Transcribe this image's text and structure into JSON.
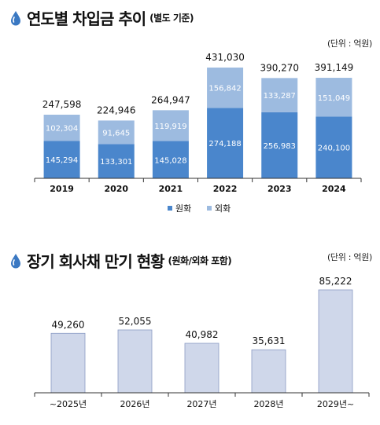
{
  "colors": {
    "domestic": "#4a86cc",
    "foreign": "#9dbbe0",
    "maturity": "#cfd7ea",
    "icon": "#3a78c2",
    "axis": "#333333"
  },
  "section1": {
    "title": "연도별 차입금 추이",
    "subtitle": "(별도 기준)",
    "unit": "(단위 : 억원)",
    "legend": [
      "원화",
      "외화"
    ]
  },
  "section2": {
    "title": "장기 회사채 만기 현황",
    "subtitle": "(원화/외화 포함)",
    "unit": "(단위 : 억원)"
  },
  "chart_data": [
    {
      "type": "bar",
      "stacked": true,
      "categories": [
        "2019",
        "2020",
        "2021",
        "2022",
        "2023",
        "2024"
      ],
      "series": [
        {
          "name": "원화",
          "values": [
            145294,
            133301,
            145028,
            274188,
            256983,
            240100
          ]
        },
        {
          "name": "외화",
          "values": [
            102304,
            91645,
            119919,
            156842,
            133287,
            151049
          ]
        }
      ],
      "totals": [
        "247,598",
        "224,946",
        "264,947",
        "431,030",
        "390,270",
        "391,149"
      ],
      "labels": {
        "domestic": [
          "145,294",
          "133,301",
          "145,028",
          "274,188",
          "256,983",
          "240,100"
        ],
        "foreign": [
          "102,304",
          "91,645",
          "119,919",
          "156,842",
          "133,287",
          "151,049"
        ]
      },
      "ylim": [
        0,
        431030
      ],
      "grid": false,
      "legend_position": "bottom"
    },
    {
      "type": "bar",
      "categories": [
        "~2025년",
        "2026년",
        "2027년",
        "2028년",
        "2029년~"
      ],
      "values": [
        49260,
        52055,
        40982,
        35631,
        85222
      ],
      "value_labels": [
        "49,260",
        "52,055",
        "40,982",
        "35,631",
        "85,222"
      ],
      "ylim": [
        0,
        85222
      ],
      "grid": false
    }
  ]
}
